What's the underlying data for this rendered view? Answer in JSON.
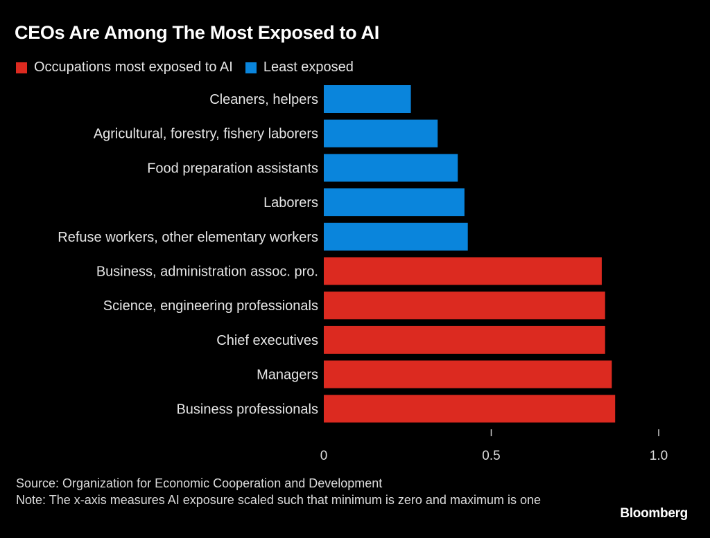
{
  "title": "CEOs Are Among The Most Exposed to AI",
  "legend": [
    {
      "label": "Occupations most exposed to AI",
      "color": "#dc2a20"
    },
    {
      "label": "Least exposed",
      "color": "#0a85dc"
    }
  ],
  "chart_data": {
    "type": "bar",
    "orientation": "horizontal",
    "title": "CEOs Are Among The Most Exposed to AI",
    "xlabel": "",
    "ylabel": "",
    "xlim": [
      0,
      1.0
    ],
    "xticks": [
      0,
      0.5,
      1.0
    ],
    "xtick_labels": [
      "0",
      "0.5",
      "1.0"
    ],
    "grid": false,
    "legend_position": "top-left",
    "categories": [
      "Cleaners, helpers",
      "Agricultural, forestry, fishery laborers",
      "Food preparation assistants",
      "Laborers",
      "Refuse workers, other elementary workers",
      "Business, administration assoc. pro.",
      "Science, engineering professionals",
      "Chief executives",
      "Managers",
      "Business professionals"
    ],
    "values": [
      0.26,
      0.34,
      0.4,
      0.42,
      0.43,
      0.83,
      0.84,
      0.84,
      0.86,
      0.87
    ],
    "groups": [
      "least",
      "least",
      "least",
      "least",
      "least",
      "most",
      "most",
      "most",
      "most",
      "most"
    ],
    "series": [
      {
        "name": "Occupations most exposed to AI",
        "color": "#dc2a20"
      },
      {
        "name": "Least exposed",
        "color": "#0a85dc"
      }
    ]
  },
  "footer": {
    "source": "Source: Organization for Economic Cooperation and Development",
    "note": "Note: The x-axis measures AI exposure scaled such that minimum is zero and maximum is one"
  },
  "brand": "Bloomberg"
}
